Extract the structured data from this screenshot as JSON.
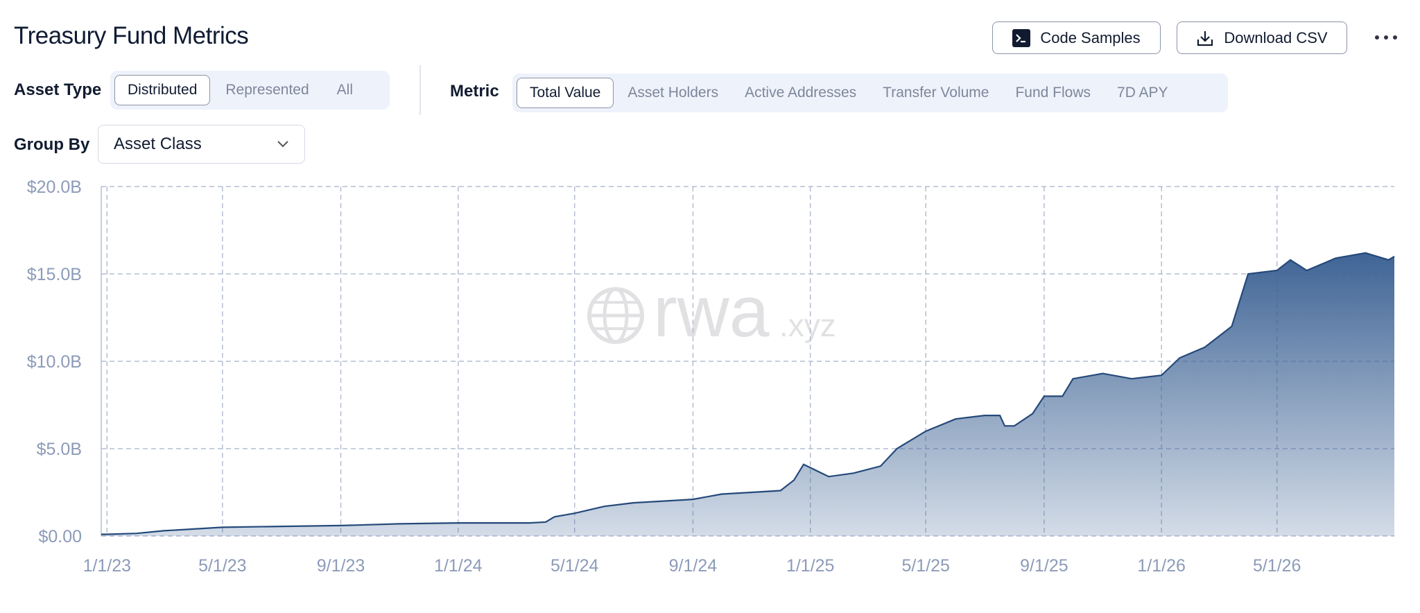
{
  "header": {
    "title": "Treasury Fund Metrics",
    "buttons": [
      "Code Samples",
      "Download CSV"
    ]
  },
  "filters": {
    "asset_type": {
      "label": "Asset Type",
      "options": [
        "Distributed",
        "Represented",
        "All"
      ],
      "active": 0
    },
    "metric": {
      "label": "Metric",
      "options": [
        "Total Value",
        "Asset Holders",
        "Active Addresses",
        "Transfer Volume",
        "Fund Flows",
        "7D APY"
      ],
      "active": 0
    },
    "group_by": {
      "label": "Group By",
      "value": "Asset Class"
    }
  },
  "chart_data": {
    "type": "area",
    "watermark": {
      "main": "rwa",
      "suffix": ".xyz"
    },
    "color": "#24497a",
    "grid": true,
    "x": [
      "12/26/22",
      "1/1/23",
      "2/1/23",
      "3/1/23",
      "4/1/23",
      "5/1/23",
      "7/1/23",
      "9/1/23",
      "11/1/23",
      "1/1/24",
      "3/15/24",
      "4/1/24",
      "4/10/24",
      "5/1/24",
      "6/1/24",
      "7/1/24",
      "9/1/24",
      "10/1/24",
      "11/1/24",
      "12/1/24",
      "12/15/24",
      "12/25/24",
      "1/20/25",
      "2/15/25",
      "3/15/25",
      "4/1/25",
      "5/1/25",
      "6/1/25",
      "7/1/25",
      "7/17/25",
      "7/22/25",
      "8/1/25",
      "8/20/25",
      "9/1/25",
      "9/20/25",
      "10/1/25",
      "11/1/25",
      "12/1/25",
      "1/1/26",
      "1/20/26",
      "2/15/26",
      "3/15/26",
      "4/1/26",
      "5/1/26",
      "5/15/26",
      "6/1/26",
      "7/1/26",
      "8/1/26",
      "8/25/26",
      "8/31/26"
    ],
    "values": [
      0.1,
      0.1,
      0.15,
      0.3,
      0.4,
      0.5,
      0.55,
      0.6,
      0.7,
      0.75,
      0.75,
      0.8,
      1.1,
      1.3,
      1.7,
      1.9,
      2.1,
      2.4,
      2.5,
      2.6,
      3.2,
      4.1,
      3.4,
      3.6,
      4.0,
      5.0,
      6.0,
      6.7,
      6.9,
      6.9,
      6.3,
      6.3,
      7.0,
      8.0,
      8.0,
      9.0,
      9.3,
      9.0,
      9.2,
      10.2,
      10.8,
      12.0,
      15.0,
      15.2,
      15.8,
      15.2,
      15.9,
      16.2,
      15.8,
      16.0
    ],
    "xlim": [
      "12/26/22",
      "8/31/26"
    ],
    "xticks": [
      "1/1/23",
      "5/1/23",
      "9/1/23",
      "1/1/24",
      "5/1/24",
      "9/1/24",
      "1/1/25",
      "5/1/25",
      "9/1/25",
      "1/1/26",
      "5/1/26"
    ],
    "ylim": [
      0,
      20
    ],
    "yticks": [
      {
        "value": 0,
        "label": "$0.00"
      },
      {
        "value": 5,
        "label": "$5.0B"
      },
      {
        "value": 10,
        "label": "$10.0B"
      },
      {
        "value": 15,
        "label": "$15.0B"
      },
      {
        "value": 20,
        "label": "$20.0B"
      }
    ]
  }
}
